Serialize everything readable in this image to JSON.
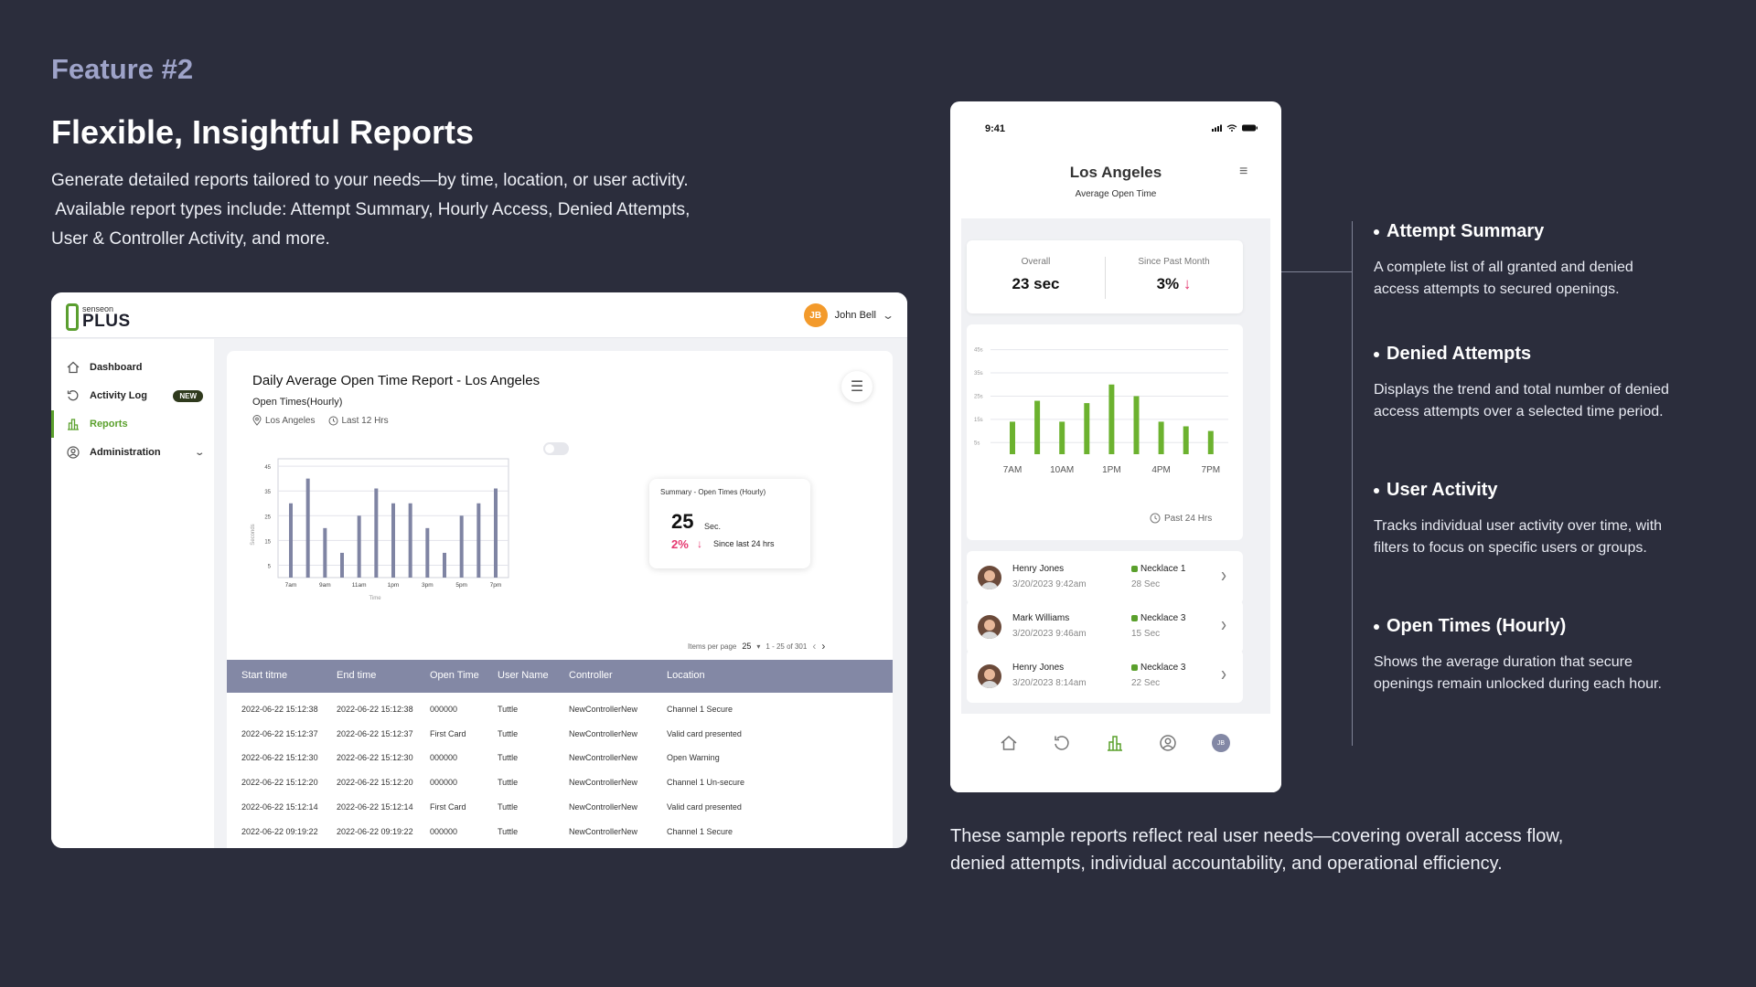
{
  "header": {
    "feature_tag": "Feature #2",
    "headline": "Flexible, Insightful Reports",
    "intro_line1": "Generate detailed reports tailored to your needs—by time, location, or user activity.",
    "intro_line2": " Available report types include: Attempt Summary, Hourly Access, Denied Attempts,",
    "intro_line3": "User & Controller Activity, and more."
  },
  "colors": {
    "background": "#2b2d3c",
    "accent_green": "#5aa02c",
    "bar_desktop": "#7f84a3",
    "alert_pink": "#e53870",
    "table_header": "#8388a5",
    "avatar_orange": "#f39a2b"
  },
  "desktop": {
    "logo": {
      "small": "senseon",
      "main": "PLUS"
    },
    "user": {
      "initials": "JB",
      "name": "John Bell"
    },
    "sidebar": [
      {
        "label": "Dashboard",
        "icon": "home-icon"
      },
      {
        "label": "Activity Log",
        "icon": "history-icon",
        "badge": "NEW"
      },
      {
        "label": "Reports",
        "icon": "bar-chart-icon",
        "active": true
      },
      {
        "label": "Administration",
        "icon": "user-circle-icon"
      }
    ],
    "report": {
      "title": "Daily Average Open Time Report - Los Angeles",
      "subtitle": "Open Times(Hourly)",
      "location": "Los Angeles",
      "range": "Last 12 Hrs"
    },
    "summary": {
      "title": "Summary - Open Times (Hourly)",
      "value": "25",
      "unit": "Sec.",
      "change": "2%",
      "change_note": "Since last 24 hrs"
    },
    "pager": {
      "label": "Items per page",
      "per_page": "25",
      "range": "1 - 25 of 301"
    },
    "table": {
      "columns": [
        "Start titme",
        "End time",
        "Open Time",
        "User Name",
        "Controller",
        "Location"
      ],
      "rows": [
        [
          "2022-06-22 15:12:38",
          "2022-06-22 15:12:38",
          "000000",
          "Tuttle",
          "NewControllerNew",
          "Channel 1 Secure"
        ],
        [
          "2022-06-22 15:12:37",
          "2022-06-22 15:12:37",
          "First Card",
          "Tuttle",
          "NewControllerNew",
          "Valid card presented"
        ],
        [
          "2022-06-22 15:12:30",
          "2022-06-22 15:12:30",
          "000000",
          "Tuttle",
          "NewControllerNew",
          "Open Warning"
        ],
        [
          "2022-06-22 15:12:20",
          "2022-06-22 15:12:20",
          "000000",
          "Tuttle",
          "NewControllerNew",
          "Channel 1 Un-secure"
        ],
        [
          "2022-06-22 15:12:14",
          "2022-06-22 15:12:14",
          "First Card",
          "Tuttle",
          "NewControllerNew",
          "Valid card presented"
        ],
        [
          "2022-06-22 09:19:22",
          "2022-06-22 09:19:22",
          "000000",
          "Tuttle",
          "NewControllerNew",
          "Channel 1 Secure"
        ]
      ]
    }
  },
  "chart_data": [
    {
      "type": "bar",
      "xlabel": "Time",
      "ylabel": "Seconds",
      "ylim": [
        0,
        48
      ],
      "yticks": [
        5,
        15,
        25,
        35,
        45
      ],
      "xtick_labels": [
        "7am",
        "9am",
        "11am",
        "1pm",
        "3pm",
        "5pm",
        "7pm"
      ],
      "values": [
        30,
        40,
        20,
        10,
        25,
        36,
        30,
        30,
        20,
        10,
        25,
        30,
        36
      ],
      "grid": true,
      "color": "#7f84a3"
    },
    {
      "type": "bar",
      "ylim": [
        0,
        48
      ],
      "yticks": [
        "5s",
        "15s",
        "25s",
        "35s",
        "45s"
      ],
      "ytick_values": [
        5,
        15,
        25,
        35,
        45
      ],
      "xtick_labels": [
        "7AM",
        "10AM",
        "1PM",
        "4PM",
        "7PM"
      ],
      "values": [
        14,
        23,
        14,
        22,
        30,
        25,
        14,
        12,
        10
      ],
      "grid": true,
      "color": "#6cb22f",
      "footer": "Past 24 Hrs"
    }
  ],
  "phone": {
    "time": "9:41",
    "title": "Los Angeles",
    "subtitle": "Average Open Time",
    "stats": [
      {
        "label": "Overall",
        "value": "23 sec"
      },
      {
        "label": "Since Past Month",
        "value": "3%"
      }
    ],
    "items": [
      {
        "name": "Henry Jones",
        "datetime": "3/20/2023 9:42am",
        "device": "Necklace 1",
        "duration": "28 Sec"
      },
      {
        "name": "Mark Williams",
        "datetime": "3/20/2023 9:46am",
        "device": "Necklace 3",
        "duration": "15 Sec"
      },
      {
        "name": "Henry Jones",
        "datetime": "3/20/2023 8:14am",
        "device": "Necklace 3",
        "duration": "22 Sec"
      }
    ],
    "nav": [
      {
        "icon": "home-icon"
      },
      {
        "icon": "history-icon"
      },
      {
        "icon": "bar-chart-icon",
        "active": true
      },
      {
        "icon": "user-circle-icon"
      },
      {
        "icon": "avatar",
        "initials": "JB"
      }
    ]
  },
  "features": [
    {
      "title": "Attempt Summary",
      "desc_lines": [
        "A complete list of all granted and denied",
        "access attempts to secured openings."
      ]
    },
    {
      "title": "Denied Attempts",
      "desc_lines": [
        "Displays the trend and total number of denied",
        "access attempts over a selected time period."
      ]
    },
    {
      "title": "User Activity",
      "desc_lines": [
        "Tracks individual user activity over time, with",
        "filters to focus on specific users or groups."
      ]
    },
    {
      "title": "Open Times (Hourly)",
      "desc_lines": [
        "Shows the average duration that secure",
        "openings remain unlocked during each hour."
      ]
    }
  ],
  "footer": {
    "line1": "These sample reports reflect real user needs—covering overall access flow,",
    "line2": "denied attempts, individual accountability, and operational efficiency."
  }
}
